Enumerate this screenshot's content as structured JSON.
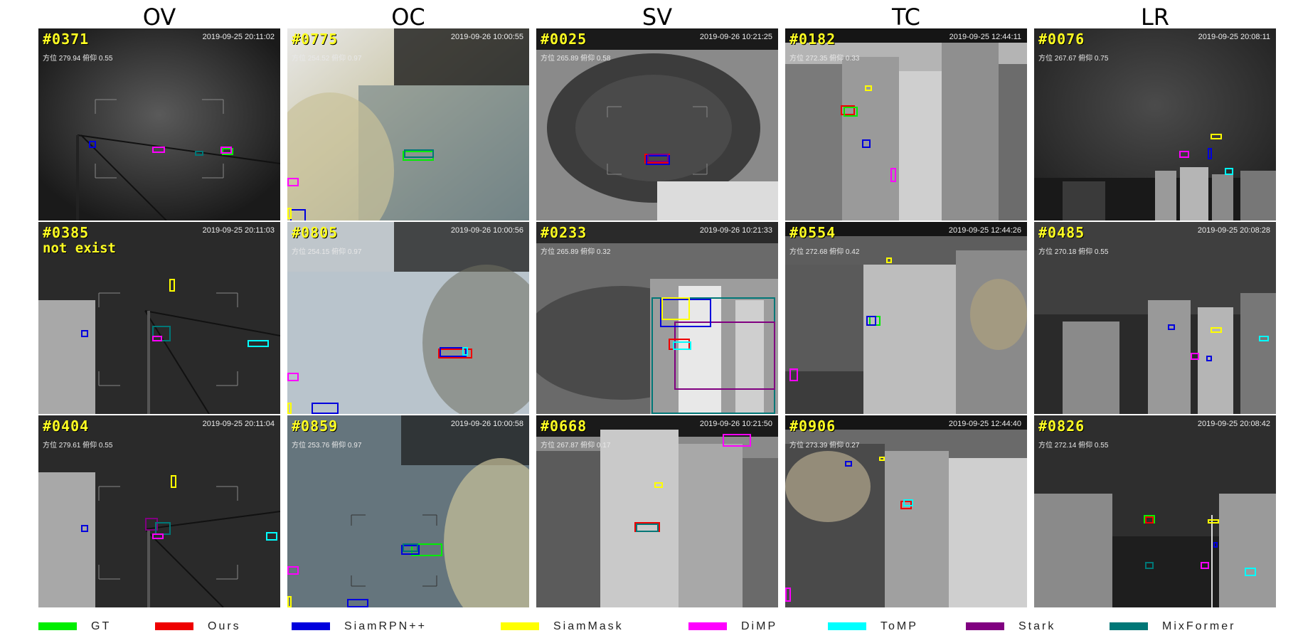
{
  "columns": [
    "OV",
    "OC",
    "SV",
    "TC",
    "LR"
  ],
  "panels": [
    {
      "frame": "#0371",
      "time": "2019-09-25  20:11:02",
      "meta": "方位 279.94   俯仰 0.55",
      "note": ""
    },
    {
      "frame": "#0775",
      "time": "2019-09-26  10:00:55",
      "meta": "方位 254.52   俯仰 0.97",
      "note": ""
    },
    {
      "frame": "#0025",
      "time": "2019-09-26  10:21:25",
      "meta": "方位 265.89   俯仰 0.58",
      "note": ""
    },
    {
      "frame": "#0182",
      "time": "2019-09-25  12:44:11",
      "meta": "方位 272.35   俯仰 0.33",
      "note": ""
    },
    {
      "frame": "#0076",
      "time": "2019-09-25  20:08:11",
      "meta": "方位 267.67   俯仰 0.75",
      "note": ""
    },
    {
      "frame": "#0385",
      "time": "2019-09-25  20:11:03",
      "meta": "",
      "note": "not exist"
    },
    {
      "frame": "#0805",
      "time": "2019-09-26  10:00:56",
      "meta": "方位 254.15   俯仰 0.97",
      "note": ""
    },
    {
      "frame": "#0233",
      "time": "2019-09-26  10:21:33",
      "meta": "方位 265.89   俯仰 0.32",
      "note": ""
    },
    {
      "frame": "#0554",
      "time": "2019-09-25  12:44:26",
      "meta": "方位 272.68   俯仰 0.42",
      "note": ""
    },
    {
      "frame": "#0485",
      "time": "2019-09-25  20:08:28",
      "meta": "方位 270.18   俯仰 0.55",
      "note": ""
    },
    {
      "frame": "#0404",
      "time": "2019-09-25  20:11:04",
      "meta": "方位 279.61   俯仰 0.55",
      "note": ""
    },
    {
      "frame": "#0859",
      "time": "2019-09-26  10:00:58",
      "meta": "方位 253.76   俯仰 0.97",
      "note": ""
    },
    {
      "frame": "#0668",
      "time": "2019-09-26  10:21:50",
      "meta": "方位 267.87   俯仰 0.17",
      "note": ""
    },
    {
      "frame": "#0906",
      "time": "2019-09-25  12:44:40",
      "meta": "方位 273.39   俯仰 0.27",
      "note": ""
    },
    {
      "frame": "#0826",
      "time": "2019-09-25  20:08:42",
      "meta": "方位 272.14   俯仰 0.55",
      "note": ""
    }
  ],
  "legend": [
    {
      "label": "GT",
      "color": "#00ee00"
    },
    {
      "label": "Ours",
      "color": "#ee0000"
    },
    {
      "label": "SiamRPN++",
      "color": "#0000dd"
    },
    {
      "label": "SiamMask",
      "color": "#ffff00"
    },
    {
      "label": "DiMP",
      "color": "#ff00ff"
    },
    {
      "label": "ToMP",
      "color": "#00ffff"
    },
    {
      "label": "Stark",
      "color": "#800080"
    },
    {
      "label": "MixFormer",
      "color": "#007777"
    }
  ]
}
